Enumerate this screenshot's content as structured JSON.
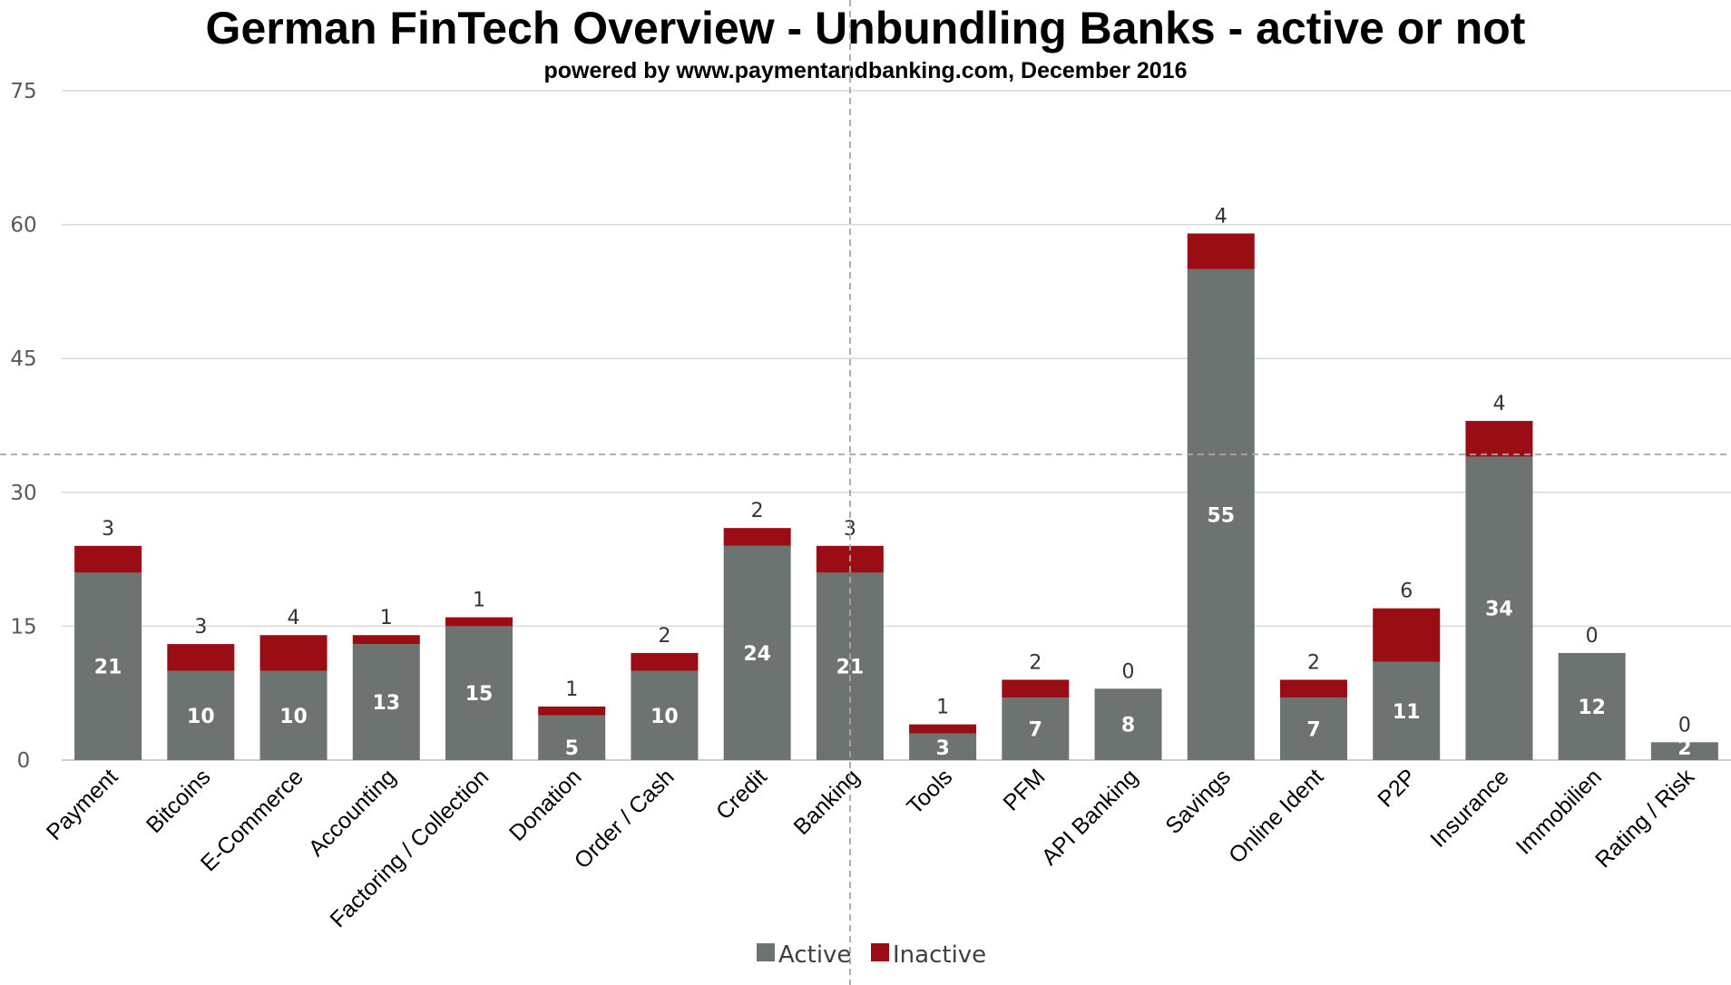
{
  "chart_data": {
    "type": "bar",
    "stacked": true,
    "title": "German FinTech Overview - Unbundling Banks - active or not",
    "subtitle": "powered by www.paymentandbanking.com, December 2016",
    "categories": [
      "Payment",
      "Bitcoins",
      "E-Commerce",
      "Accounting",
      "Factoring / Collection",
      "Donation",
      "Order / Cash",
      "Credit",
      "Banking",
      "Tools",
      "PFM",
      "API Banking",
      "Savings",
      "Online Ident",
      "P2P",
      "Insurance",
      "Immobilien",
      "Rating / Risk"
    ],
    "series": [
      {
        "name": "Active",
        "color": "#6d7370",
        "values": [
          21,
          10,
          10,
          13,
          15,
          5,
          10,
          24,
          21,
          3,
          7,
          8,
          55,
          7,
          11,
          34,
          12,
          2
        ]
      },
      {
        "name": "Inactive",
        "color": "#9b0d14",
        "values": [
          3,
          3,
          4,
          1,
          1,
          1,
          2,
          2,
          3,
          1,
          2,
          0,
          4,
          2,
          6,
          4,
          0,
          0
        ]
      }
    ],
    "ylim": [
      0,
      75
    ],
    "yticks": [
      0,
      15,
      30,
      45,
      60,
      75
    ],
    "grid": true,
    "legend": "bottom-center",
    "xlabel": "",
    "ylabel": ""
  }
}
